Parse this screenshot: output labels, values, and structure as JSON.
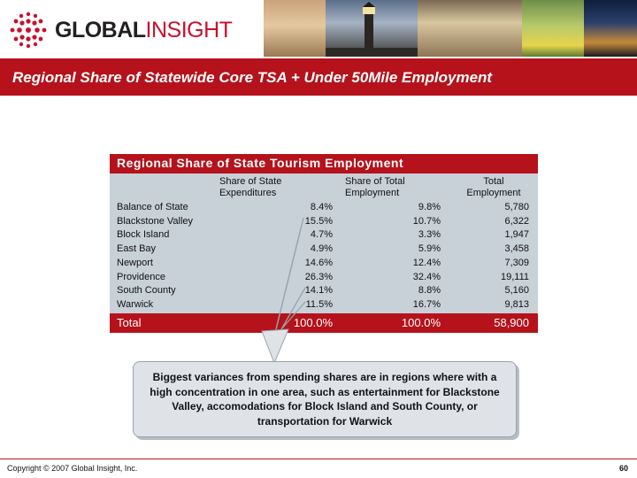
{
  "header": {
    "logo_global": "GLOBAL",
    "logo_insight": "INSIGHT"
  },
  "slide": {
    "title": "Regional Share of Statewide Core TSA + Under 50Mile Employment"
  },
  "table": {
    "title": "Regional Share of State Tourism Employment",
    "columns": [
      "Share of State\nExpenditures",
      "Share of Total\nEmployment",
      "Total\nEmployment"
    ],
    "rows": [
      {
        "region": "Balance of State",
        "exp_share": "8.4%",
        "emp_share": "9.8%",
        "total": "5,780"
      },
      {
        "region": "Blackstone Valley",
        "exp_share": "15.5%",
        "emp_share": "10.7%",
        "total": "6,322"
      },
      {
        "region": "Block Island",
        "exp_share": "4.7%",
        "emp_share": "3.3%",
        "total": "1,947"
      },
      {
        "region": "East Bay",
        "exp_share": "4.9%",
        "emp_share": "5.9%",
        "total": "3,458"
      },
      {
        "region": "Newport",
        "exp_share": "14.6%",
        "emp_share": "12.4%",
        "total": "7,309"
      },
      {
        "region": "Providence",
        "exp_share": "26.3%",
        "emp_share": "32.4%",
        "total": "19,111"
      },
      {
        "region": "South County",
        "exp_share": "14.1%",
        "emp_share": "8.8%",
        "total": "5,160"
      },
      {
        "region": "Warwick",
        "exp_share": "11.5%",
        "emp_share": "16.7%",
        "total": "9,813"
      }
    ],
    "total_row": {
      "region": "Total",
      "exp_share": "100.0%",
      "emp_share": "100.0%",
      "total": "58,900"
    }
  },
  "callout": {
    "text": "Biggest variances from spending shares are in regions where with a high concentration in one area, such as entertainment for Blackstone Valley, accomodations for Block Island and South County, or transportation for Warwick"
  },
  "footer": {
    "copyright": "Copyright © 2007 Global Insight, Inc.",
    "page_number": "60"
  },
  "colors": {
    "brand_red": "#b5121b",
    "table_bg": "#c8d0d8",
    "callout_bg": "#dfe3e8"
  }
}
